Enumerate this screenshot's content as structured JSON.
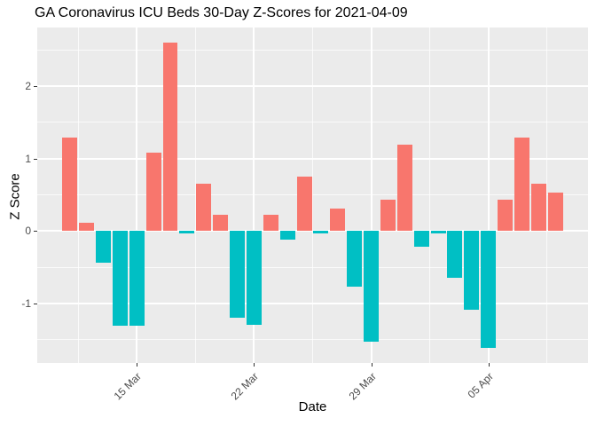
{
  "title": "GA Coronavirus ICU Beds 30-Day Z-Scores for 2021-04-09",
  "chart_data": {
    "type": "bar",
    "title": "GA Coronavirus ICU Beds 30-Day Z-Scores for 2021-04-09",
    "xlabel": "Date",
    "ylabel": "Z Score",
    "x": [
      "2021-03-11",
      "2021-03-12",
      "2021-03-13",
      "2021-03-14",
      "2021-03-15",
      "2021-03-16",
      "2021-03-17",
      "2021-03-18",
      "2021-03-19",
      "2021-03-20",
      "2021-03-21",
      "2021-03-22",
      "2021-03-23",
      "2021-03-24",
      "2021-03-25",
      "2021-03-26",
      "2021-03-27",
      "2021-03-28",
      "2021-03-29",
      "2021-03-30",
      "2021-03-31",
      "2021-04-01",
      "2021-04-02",
      "2021-04-03",
      "2021-04-04",
      "2021-04-05",
      "2021-04-06",
      "2021-04-07",
      "2021-04-08",
      "2021-04-09"
    ],
    "values": [
      1.29,
      0.11,
      -0.44,
      -1.31,
      -1.31,
      1.08,
      2.6,
      -0.03,
      0.65,
      0.22,
      -1.2,
      -1.29,
      0.22,
      -0.12,
      0.75,
      -0.03,
      0.31,
      -0.77,
      -1.52,
      0.43,
      1.19,
      -0.22,
      -0.03,
      -0.65,
      -1.08,
      -1.61,
      0.43,
      1.29,
      0.65,
      0.53
    ],
    "ylim": [
      -1.82,
      2.81
    ],
    "y_major_ticks": [
      -1,
      0,
      1,
      2
    ],
    "y_minor_ticks": [
      -1.5,
      -0.5,
      0.5,
      1.5,
      2.5
    ],
    "x_tick_labels": [
      "15 Mar",
      "22 Mar",
      "29 Mar",
      "05 Apr"
    ],
    "x_tick_indices": [
      4,
      11,
      18,
      25
    ],
    "x_minor_indices": [
      0.5,
      7.5,
      14.5,
      21.5,
      28.5
    ],
    "bar_rel_width": 0.9,
    "grid": true,
    "legend": "none",
    "colors": {
      "positive": "#F8766D",
      "negative": "#00BFC4",
      "panel_background": "#EBEBEB",
      "grid": "#FFFFFF",
      "tick_text": "#4D4D4D",
      "tick_mark": "#333333",
      "title_text": "#000000"
    }
  }
}
